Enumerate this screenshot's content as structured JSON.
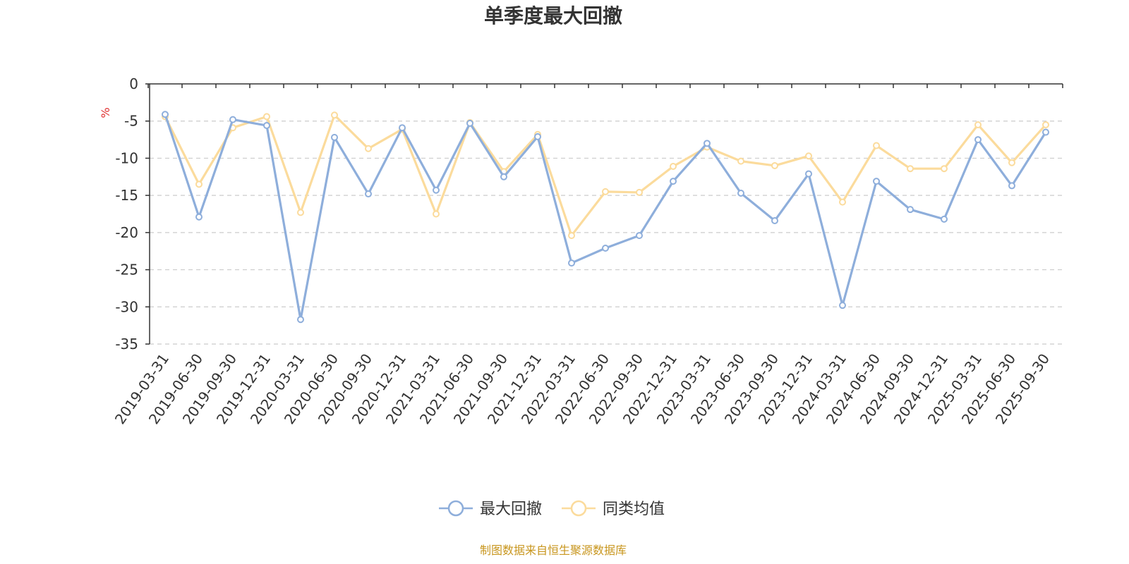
{
  "chart_data": {
    "type": "line",
    "title": "单季度最大回撤",
    "ylabel": "%",
    "ylim": [
      -35,
      0
    ],
    "yticks": [
      0,
      -5,
      -10,
      -15,
      -20,
      -25,
      -30,
      -35
    ],
    "grid": true,
    "legend_position": "bottom-center",
    "categories": [
      "2019-03-31",
      "2019-06-30",
      "2019-09-30",
      "2019-12-31",
      "2020-03-31",
      "2020-06-30",
      "2020-09-30",
      "2020-12-31",
      "2021-03-31",
      "2021-06-30",
      "2021-09-30",
      "2021-12-31",
      "2022-03-31",
      "2022-06-30",
      "2022-09-30",
      "2022-12-31",
      "2023-03-31",
      "2023-06-30",
      "2023-09-30",
      "2023-12-31",
      "2024-03-31",
      "2024-06-30",
      "2024-09-30",
      "2024-12-31",
      "2025-03-31",
      "2025-06-30",
      "2025-09-30"
    ],
    "series": [
      {
        "name": "最大回撤",
        "color": "#8eaedb",
        "values": [
          -4.1,
          -17.9,
          -4.8,
          -5.6,
          -31.7,
          -7.2,
          -14.8,
          -5.9,
          -14.3,
          -5.3,
          -12.5,
          -7.1,
          -24.1,
          -22.1,
          -20.4,
          -13.1,
          -8.0,
          -14.7,
          -18.4,
          -12.1,
          -29.8,
          -13.1,
          -16.9,
          -18.2,
          -7.5,
          -13.7,
          -6.5
        ]
      },
      {
        "name": "同类均值",
        "color": "#fbdb9c",
        "values": [
          -4.4,
          -13.5,
          -5.9,
          -4.4,
          -17.3,
          -4.2,
          -8.7,
          -6.1,
          -17.5,
          -5.2,
          -11.8,
          -6.8,
          -20.4,
          -14.5,
          -14.6,
          -11.1,
          -8.5,
          -10.4,
          -11.0,
          -9.7,
          -15.9,
          -8.3,
          -11.4,
          -11.4,
          -5.5,
          -10.6,
          -5.5
        ]
      }
    ],
    "source_note": "制图数据来自恒生聚源数据库"
  }
}
